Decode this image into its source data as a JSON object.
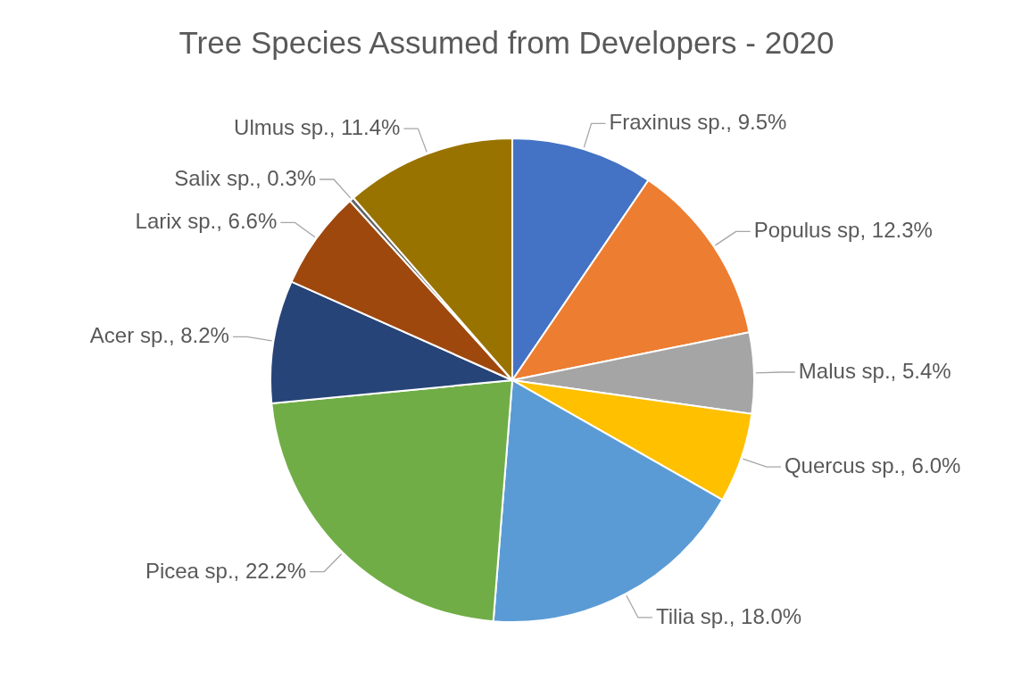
{
  "chart_data": {
    "type": "pie",
    "title": "Tree Species Assumed from Developers - 2020",
    "categories": [
      "Fraxinus sp.",
      "Populus sp",
      "Malus sp.",
      "Quercus sp.",
      "Tilia sp.",
      "Picea sp.",
      "Acer sp.",
      "Larix sp.",
      "Salix sp.",
      "Ulmus sp."
    ],
    "values": [
      9.5,
      12.3,
      5.4,
      6.0,
      18.0,
      22.2,
      8.2,
      6.6,
      0.3,
      11.4
    ],
    "colors": [
      "#4472c4",
      "#ed7d31",
      "#a5a5a5",
      "#ffc000",
      "#5b9bd5",
      "#70ad47",
      "#264478",
      "#9e480e",
      "#636363",
      "#997300"
    ],
    "value_labels": [
      "9.5%",
      "12.3%",
      "5.4%",
      "6.0%",
      "18.0%",
      "22.2%",
      "8.2%",
      "6.6%",
      "0.3%",
      "11.4%"
    ]
  }
}
